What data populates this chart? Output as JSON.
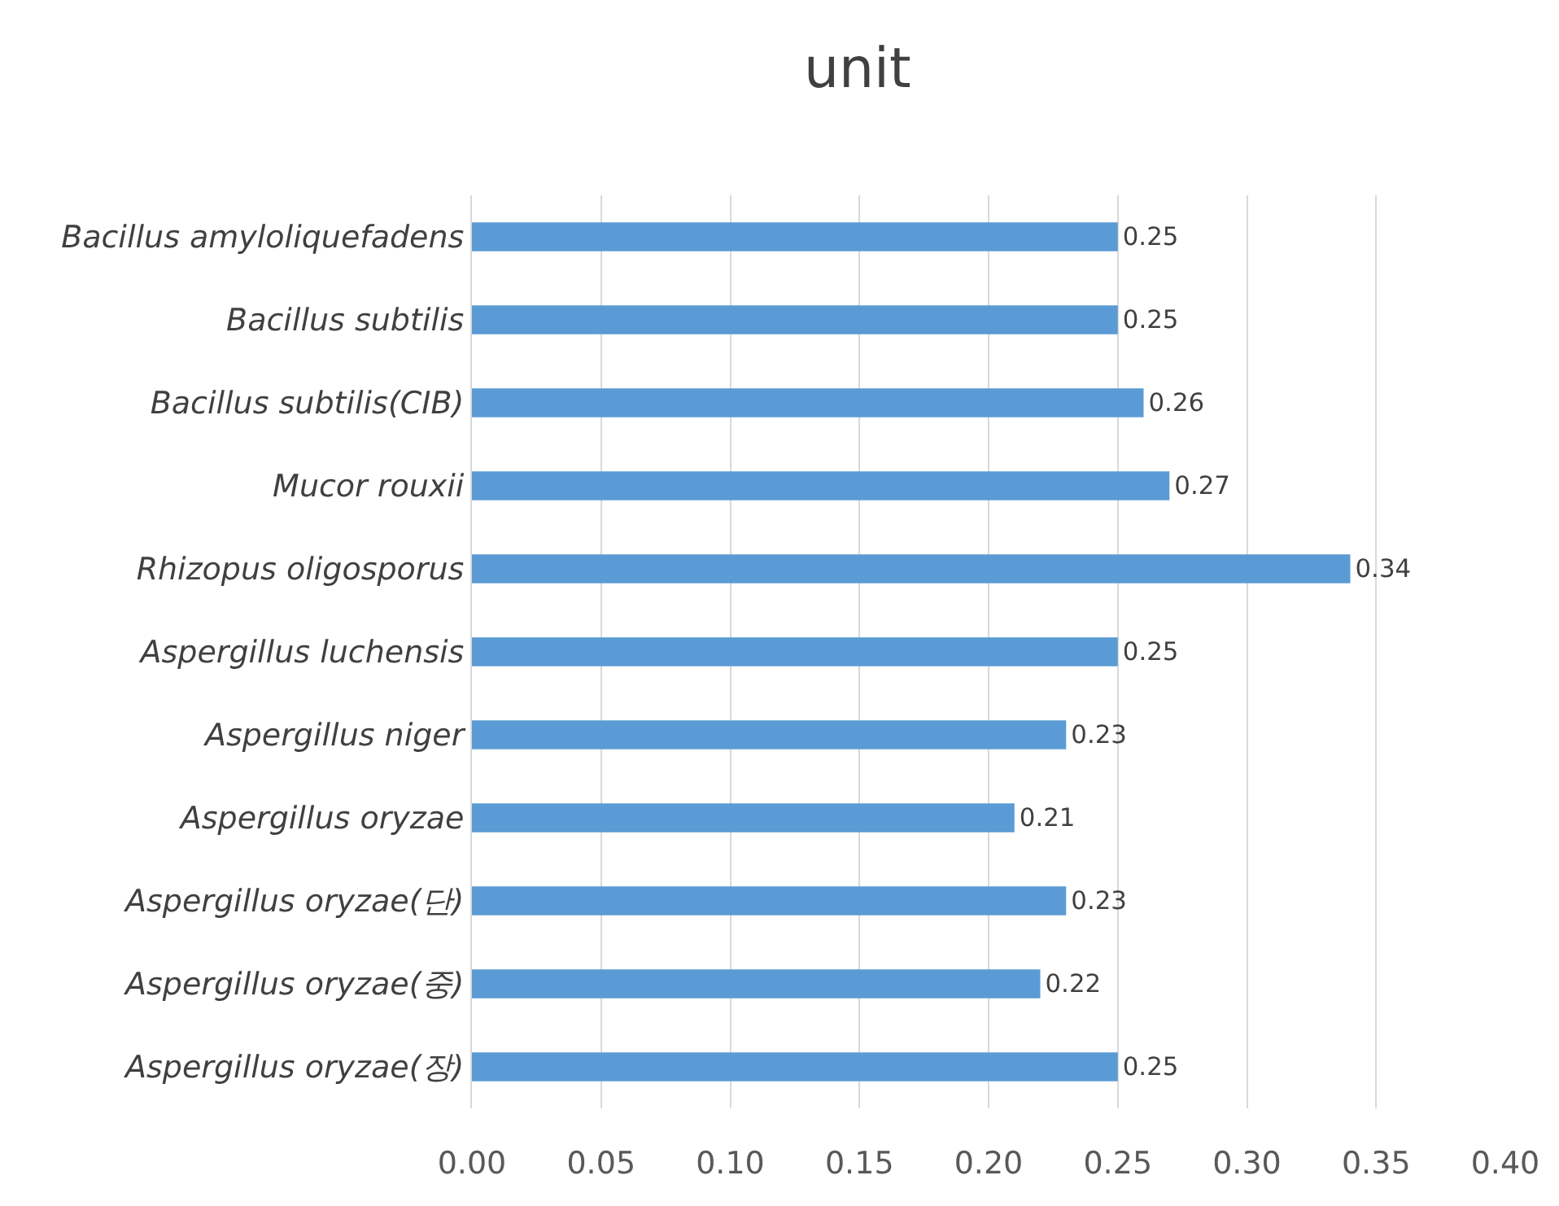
{
  "chart_data": {
    "type": "bar",
    "orientation": "horizontal",
    "title": "unit",
    "categories": [
      "Bacillus amyloliquefadens",
      "Bacillus subtilis",
      "Bacillus subtilis(CIB)",
      "Mucor rouxii",
      "Rhizopus oligosporus",
      "Aspergillus luchensis",
      "Aspergillus niger",
      "Aspergillus oryzae",
      "Aspergillus oryzae(단)",
      "Aspergillus oryzae(중)",
      "Aspergillus oryzae(장)"
    ],
    "values": [
      0.25,
      0.25,
      0.26,
      0.27,
      0.34,
      0.25,
      0.23,
      0.21,
      0.23,
      0.22,
      0.25
    ],
    "color": "#5b9bd5",
    "data_labels": true,
    "grid": "x",
    "legend": false,
    "xlim": [
      0,
      0.4
    ],
    "xticks": [
      {
        "value": 0,
        "label": "0.00"
      },
      0.05,
      {
        "value": 0.1,
        "label": "0.10"
      },
      0.15,
      {
        "value": 0.2,
        "label": "0.20"
      },
      0.25,
      {
        "value": 0.3,
        "label": "0.30"
      },
      0.35,
      {
        "value": 0.4,
        "label": "0.40"
      }
    ]
  }
}
